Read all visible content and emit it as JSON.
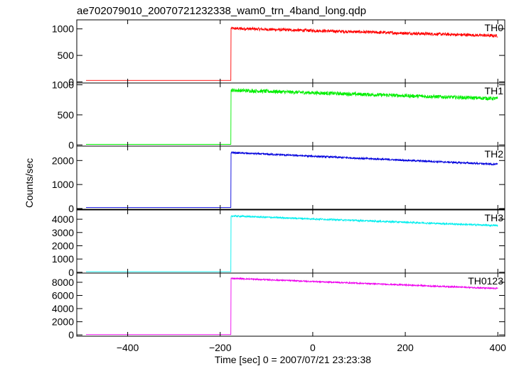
{
  "chart_data": {
    "type": "line",
    "title": "ae702079010_20070721232338_wam0_trn_4band_long.qdp",
    "xlabel": "Time [sec] 0 = 2007/07/21 23:23:38",
    "ylabel": "Counts/sec",
    "xlim": [
      -510,
      415
    ],
    "x_ticks": [
      -400,
      -200,
      0,
      200,
      400
    ],
    "x_tick_labels": [
      "−400",
      "−200",
      "0",
      "200",
      "400"
    ],
    "onset_x": -177,
    "end_x": 400,
    "start_x": -490,
    "panels": [
      {
        "name": "TH0",
        "color": "#ff0000",
        "ylim": [
          -20,
          1170
        ],
        "ticks": [
          0,
          500,
          1000
        ],
        "pre": 30,
        "peak": 1010,
        "end": 870,
        "noise": 28
      },
      {
        "name": "TH1",
        "color": "#00ee00",
        "ylim": [
          -20,
          1030
        ],
        "ticks": [
          0,
          500,
          1000
        ],
        "pre": 10,
        "peak": 910,
        "end": 770,
        "noise": 30
      },
      {
        "name": "TH2",
        "color": "#0000dd",
        "ylim": [
          -30,
          2600
        ],
        "ticks": [
          0,
          1000,
          2000
        ],
        "pre": 40,
        "peak": 2330,
        "end": 1840,
        "noise": 35
      },
      {
        "name": "TH3",
        "color": "#00eeee",
        "ylim": [
          -60,
          4700
        ],
        "ticks": [
          0,
          1000,
          2000,
          3000,
          4000
        ],
        "pre": 40,
        "peak": 4250,
        "end": 3520,
        "noise": 60
      },
      {
        "name": "TH0123",
        "color": "#ee00ee",
        "ylim": [
          -200,
          9400
        ],
        "ticks": [
          0,
          2000,
          4000,
          6000,
          8000
        ],
        "pre": 50,
        "peak": 8600,
        "end": 7050,
        "noise": 100
      }
    ]
  }
}
